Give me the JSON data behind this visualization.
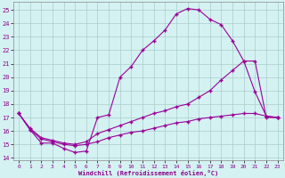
{
  "xlabel": "Windchill (Refroidissement éolien,°C)",
  "background_color": "#d5f2f2",
  "grid_color": "#aacccc",
  "line_color": "#990099",
  "xlim": [
    -0.5,
    23.5
  ],
  "ylim": [
    13.8,
    25.6
  ],
  "yticks": [
    14,
    15,
    16,
    17,
    18,
    19,
    20,
    21,
    22,
    23,
    24,
    25
  ],
  "xticks": [
    0,
    1,
    2,
    3,
    4,
    5,
    6,
    7,
    8,
    9,
    10,
    11,
    12,
    13,
    14,
    15,
    16,
    17,
    18,
    19,
    20,
    21,
    22,
    23
  ],
  "series1_x": [
    0,
    1,
    2,
    3,
    4,
    5,
    6,
    7,
    8,
    9,
    10,
    11,
    12,
    13,
    14,
    15,
    16,
    17,
    18,
    19,
    20,
    21,
    22,
    23
  ],
  "series1_y": [
    17.3,
    16.1,
    15.1,
    15.1,
    14.7,
    14.4,
    14.5,
    17.0,
    17.2,
    20.0,
    20.8,
    22.0,
    22.7,
    23.5,
    24.7,
    25.1,
    25.0,
    24.3,
    23.9,
    22.7,
    21.2,
    18.9,
    17.1,
    17.0
  ],
  "series2_x": [
    0,
    1,
    2,
    3,
    4,
    5,
    6,
    7,
    8,
    9,
    10,
    11,
    12,
    13,
    14,
    15,
    16,
    17,
    18,
    19,
    20,
    21,
    22,
    23
  ],
  "series2_y": [
    17.3,
    16.2,
    15.5,
    15.3,
    15.1,
    15.0,
    15.2,
    15.8,
    16.1,
    16.4,
    16.7,
    17.0,
    17.3,
    17.5,
    17.8,
    18.0,
    18.5,
    19.0,
    19.8,
    20.5,
    21.2,
    21.2,
    17.0,
    17.0
  ],
  "series3_x": [
    0,
    1,
    2,
    3,
    4,
    5,
    6,
    7,
    8,
    9,
    10,
    11,
    12,
    13,
    14,
    15,
    16,
    17,
    18,
    19,
    20,
    21,
    22,
    23
  ],
  "series3_y": [
    17.3,
    16.1,
    15.4,
    15.2,
    15.0,
    14.9,
    15.0,
    15.2,
    15.5,
    15.7,
    15.9,
    16.0,
    16.2,
    16.4,
    16.6,
    16.7,
    16.9,
    17.0,
    17.1,
    17.2,
    17.3,
    17.3,
    17.1,
    17.0
  ],
  "marker": "+",
  "linewidth": 0.8,
  "markersize": 3.5
}
